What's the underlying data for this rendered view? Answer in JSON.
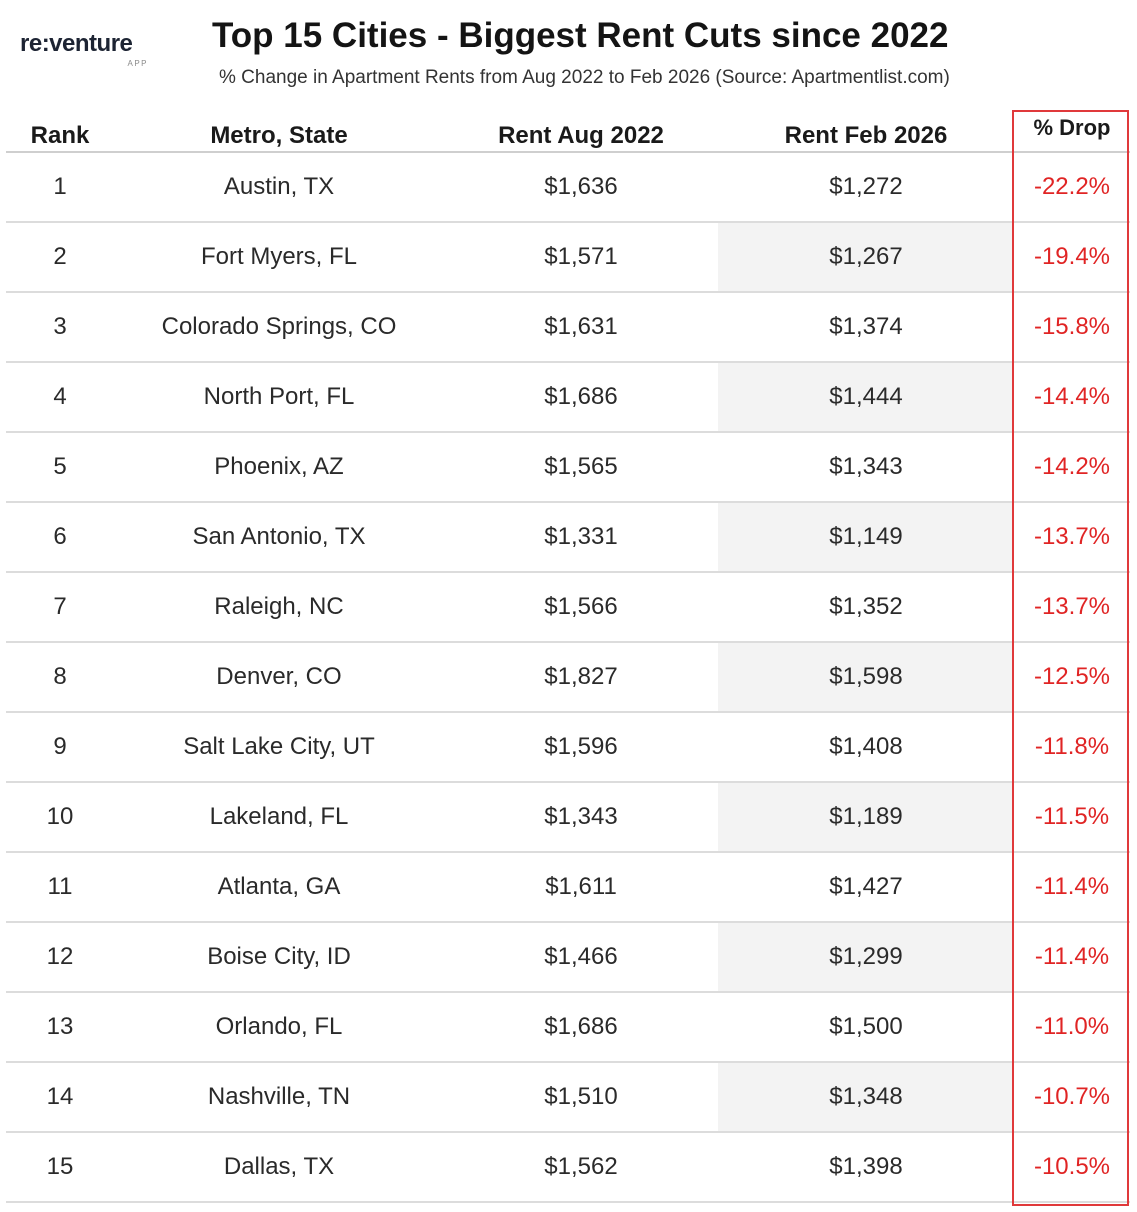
{
  "logo": {
    "word": "re:venture",
    "sub": "APP"
  },
  "chart_data": {
    "type": "table",
    "title": "Top 15 Cities - Biggest Rent Cuts since 2022",
    "subtitle": "% Change in Apartment Rents from Aug 2022 to Feb 2026 (Source: Apartmentlist.com)",
    "columns": [
      "Rank",
      "Metro, State",
      "Rent Aug 2022",
      "Rent Feb 2026",
      "% Drop"
    ],
    "rows": [
      {
        "rank": "1",
        "metro": "Austin, TX",
        "aug": "$1,636",
        "feb": "$1,272",
        "drop": "-22.2%"
      },
      {
        "rank": "2",
        "metro": "Fort Myers, FL",
        "aug": "$1,571",
        "feb": "$1,267",
        "drop": "-19.4%"
      },
      {
        "rank": "3",
        "metro": "Colorado Springs, CO",
        "aug": "$1,631",
        "feb": "$1,374",
        "drop": "-15.8%"
      },
      {
        "rank": "4",
        "metro": "North Port, FL",
        "aug": "$1,686",
        "feb": "$1,444",
        "drop": "-14.4%"
      },
      {
        "rank": "5",
        "metro": "Phoenix, AZ",
        "aug": "$1,565",
        "feb": "$1,343",
        "drop": "-14.2%"
      },
      {
        "rank": "6",
        "metro": "San Antonio, TX",
        "aug": "$1,331",
        "feb": "$1,149",
        "drop": "-13.7%"
      },
      {
        "rank": "7",
        "metro": "Raleigh, NC",
        "aug": "$1,566",
        "feb": "$1,352",
        "drop": "-13.7%"
      },
      {
        "rank": "8",
        "metro": "Denver, CO",
        "aug": "$1,827",
        "feb": "$1,598",
        "drop": "-12.5%"
      },
      {
        "rank": "9",
        "metro": "Salt Lake City, UT",
        "aug": "$1,596",
        "feb": "$1,408",
        "drop": "-11.8%"
      },
      {
        "rank": "10",
        "metro": "Lakeland, FL",
        "aug": "$1,343",
        "feb": "$1,189",
        "drop": "-11.5%"
      },
      {
        "rank": "11",
        "metro": "Atlanta, GA",
        "aug": "$1,611",
        "feb": "$1,427",
        "drop": "-11.4%"
      },
      {
        "rank": "12",
        "metro": "Boise City, ID",
        "aug": "$1,466",
        "feb": "$1,299",
        "drop": "-11.4%"
      },
      {
        "rank": "13",
        "metro": "Orlando, FL",
        "aug": "$1,686",
        "feb": "$1,500",
        "drop": "-11.0%"
      },
      {
        "rank": "14",
        "metro": "Nashville, TN",
        "aug": "$1,510",
        "feb": "$1,348",
        "drop": "-10.7%"
      },
      {
        "rank": "15",
        "metro": "Dallas, TX",
        "aug": "$1,562",
        "feb": "$1,398",
        "drop": "-10.5%"
      }
    ],
    "colors": {
      "drop_text": "#e02424",
      "highlight_border": "#e0393b",
      "alt_shade": "#f3f3f3"
    }
  }
}
